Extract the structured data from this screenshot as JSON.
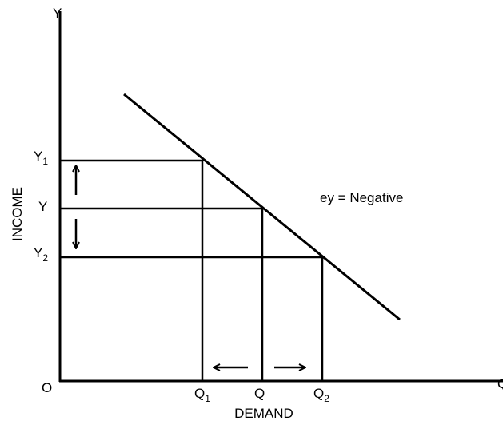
{
  "y_axis": {
    "label": "INCOME",
    "end": "Y"
  },
  "x_axis": {
    "label": "DEMAND",
    "end": "Q"
  },
  "origin": "O",
  "y_ticks": [
    {
      "main": "Y",
      "sub": "1"
    },
    {
      "main": "Y"
    },
    {
      "main": "Y",
      "sub": "2"
    }
  ],
  "x_ticks": [
    {
      "main": "Q",
      "sub": "1"
    },
    {
      "main": "Q"
    },
    {
      "main": "Q",
      "sub": "2"
    }
  ],
  "annotation": "ey = Negative"
}
